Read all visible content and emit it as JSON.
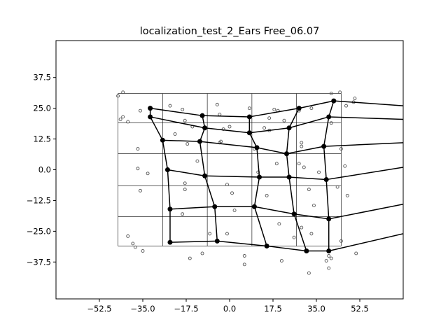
{
  "chart_data": {
    "type": "scatter",
    "title": "localization_test_2_Ears Free_06.07",
    "xlabel": "",
    "ylabel": "",
    "xlim": [
      -70,
      70
    ],
    "ylim": [
      -52.5,
      52.5
    ],
    "xticks": [
      -52.5,
      -35.0,
      -17.5,
      0.0,
      17.5,
      35.0,
      52.5
    ],
    "xtick_labels": [
      "−52.5",
      "−35.0",
      "−17.5",
      "0.0",
      "17.5",
      "35.0",
      "52.5"
    ],
    "yticks": [
      37.5,
      25.0,
      12.5,
      0.0,
      -12.5,
      -25.0,
      -37.5
    ],
    "ytick_labels": [
      "37.5",
      "25.0",
      "12.5",
      "0.0",
      "−12.5",
      "−25.0",
      "−37.5"
    ],
    "reference_grid": {
      "x_lines": [
        -45,
        -27,
        -9,
        9,
        27,
        45
      ],
      "y_lines": [
        31,
        19,
        6.5,
        -6.5,
        -19,
        -31
      ],
      "color": "#000000"
    },
    "estimated_grid": {
      "color": "#000000",
      "rows": [
        [
          [
            -32,
            25
          ],
          [
            -11,
            22
          ],
          [
            8,
            21.5
          ],
          [
            28,
            25
          ],
          [
            42,
            28
          ]
        ],
        [
          [
            -32,
            21.5
          ],
          [
            -10,
            17
          ],
          [
            8,
            15
          ],
          [
            24,
            17
          ],
          [
            40,
            21.5
          ]
        ],
        [
          [
            -27,
            12
          ],
          [
            -12,
            11.5
          ],
          [
            11,
            9
          ],
          [
            23,
            6.5
          ],
          [
            38,
            9.5
          ]
        ],
        [
          [
            -25,
            0
          ],
          [
            -10,
            -2.5
          ],
          [
            12,
            -3
          ],
          [
            24,
            -3
          ],
          [
            39,
            -4
          ]
        ],
        [
          [
            -24,
            -16
          ],
          [
            -6,
            -15
          ],
          [
            10,
            -15
          ],
          [
            26,
            -18
          ],
          [
            40,
            -20
          ]
        ],
        [
          [
            -24,
            -29.5
          ],
          [
            -5,
            -29
          ],
          [
            15,
            -31
          ],
          [
            31,
            -33
          ],
          [
            40,
            -33
          ]
        ]
      ],
      "tails": [
        {
          "from": [
            42,
            28
          ],
          "to": [
            70,
            26
          ]
        },
        {
          "from": [
            40,
            21.5
          ],
          "to": [
            70,
            20.5
          ]
        },
        {
          "from": [
            38,
            9.5
          ],
          "to": [
            70,
            11
          ]
        },
        {
          "from": [
            39,
            -4
          ],
          "to": [
            70,
            1
          ]
        },
        {
          "from": [
            40,
            -20
          ],
          "to": [
            70,
            -14
          ]
        },
        {
          "from": [
            40,
            -33
          ],
          "to": [
            70,
            -26
          ]
        }
      ]
    },
    "responses": {
      "color": "#555555",
      "points": [
        [
          -45,
          30
        ],
        [
          -43,
          31.5
        ],
        [
          -36,
          24
        ],
        [
          -24,
          26
        ],
        [
          -19,
          24.5
        ],
        [
          -5,
          26.5
        ],
        [
          8,
          25
        ],
        [
          18,
          24.5
        ],
        [
          19.5,
          24
        ],
        [
          28,
          24
        ],
        [
          33,
          25
        ],
        [
          44.5,
          31.5
        ],
        [
          41,
          31
        ],
        [
          50.5,
          29
        ],
        [
          50,
          27.5
        ],
        [
          47,
          26
        ],
        [
          -43,
          21.5
        ],
        [
          -44,
          20.5
        ],
        [
          -41,
          19.5
        ],
        [
          -18,
          20
        ],
        [
          -15,
          17.5
        ],
        [
          -22,
          14.5
        ],
        [
          -17,
          10.5
        ],
        [
          -2.5,
          16.5
        ],
        [
          0,
          17.5
        ],
        [
          14,
          17
        ],
        [
          16,
          16
        ],
        [
          16,
          21
        ],
        [
          -4,
          22.5
        ],
        [
          22,
          20
        ],
        [
          29,
          11
        ],
        [
          29,
          9.5
        ],
        [
          41,
          19
        ],
        [
          -37,
          8.5
        ],
        [
          -13,
          3.5
        ],
        [
          -4,
          11
        ],
        [
          -3.5,
          11.5
        ],
        [
          10,
          8.5
        ],
        [
          19,
          2.5
        ],
        [
          28,
          2.5
        ],
        [
          30,
          1
        ],
        [
          36,
          -1
        ],
        [
          45,
          8.5
        ],
        [
          46.5,
          1.5
        ],
        [
          -37,
          0.5
        ],
        [
          -33,
          -1.5
        ],
        [
          -18,
          -5.5
        ],
        [
          -18,
          -8
        ],
        [
          -1,
          -6
        ],
        [
          1,
          -9.5
        ],
        [
          11.5,
          -1
        ],
        [
          15,
          -10.5
        ],
        [
          32,
          -8
        ],
        [
          43.5,
          -7
        ],
        [
          47.5,
          -10.5
        ],
        [
          -36,
          -8.5
        ],
        [
          -19,
          -18
        ],
        [
          2,
          -16.5
        ],
        [
          34,
          -14.5
        ],
        [
          -41,
          -27
        ],
        [
          -39,
          -30
        ],
        [
          -38,
          -31.5
        ],
        [
          -35,
          -33
        ],
        [
          -8,
          -26
        ],
        [
          -1,
          -26
        ],
        [
          -11,
          -34
        ],
        [
          -16,
          -36
        ],
        [
          6,
          -35
        ],
        [
          6,
          -38.5
        ],
        [
          20,
          -22
        ],
        [
          29,
          -23.5
        ],
        [
          33,
          -26
        ],
        [
          39,
          -37
        ],
        [
          41,
          -36
        ],
        [
          40,
          -40
        ],
        [
          32,
          -42
        ],
        [
          21,
          -37
        ],
        [
          26,
          -27.5
        ],
        [
          40,
          -35
        ],
        [
          45,
          -29
        ],
        [
          51,
          -34
        ]
      ]
    }
  }
}
